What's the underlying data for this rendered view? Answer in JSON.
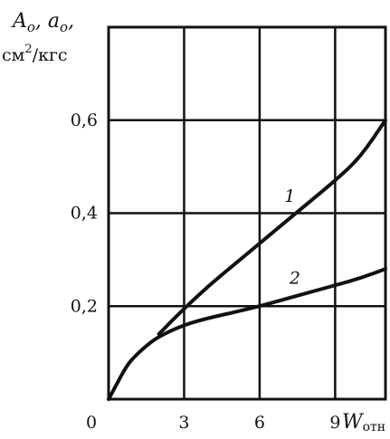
{
  "chart_data": {
    "type": "line",
    "ylabel_line1": "A",
    "ylabel_sub1": "o",
    "ylabel_sep": ", ",
    "ylabel_line1b": "a",
    "ylabel_sub2": "o",
    "ylabel_comma": ",",
    "yunit_pre": "см",
    "yunit_sup": "2",
    "yunit_post": "/кгс",
    "xlabel_main": "W",
    "xlabel_sub": "отн",
    "x_ticks": [
      "0",
      "3",
      "6",
      "9"
    ],
    "y_ticks": [
      "0,2",
      "0,4",
      "0,6"
    ],
    "xlim": [
      0,
      11
    ],
    "ylim": [
      0,
      0.8
    ],
    "grid": true,
    "series": [
      {
        "name": "1",
        "x": [
          2,
          3,
          4,
          5,
          6,
          7,
          8,
          9,
          10,
          11
        ],
        "y": [
          0.14,
          0.195,
          0.245,
          0.29,
          0.335,
          0.38,
          0.425,
          0.47,
          0.52,
          0.6
        ]
      },
      {
        "name": "2",
        "x": [
          0,
          0.3,
          0.7,
          1,
          1.5,
          2,
          3,
          4,
          5,
          6,
          7,
          8,
          9,
          10,
          11
        ],
        "y": [
          0,
          0.03,
          0.07,
          0.09,
          0.115,
          0.135,
          0.16,
          0.175,
          0.187,
          0.2,
          0.215,
          0.23,
          0.245,
          0.26,
          0.28
        ]
      }
    ]
  }
}
